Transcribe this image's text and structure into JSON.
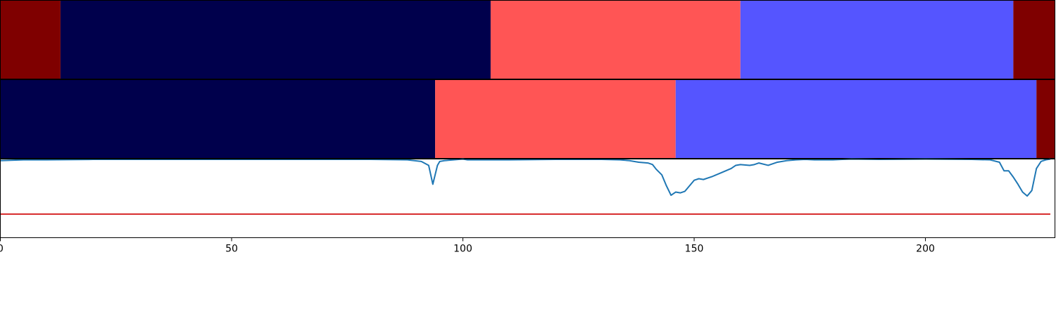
{
  "chart_data": {
    "type": "area",
    "xlim": [
      0,
      228
    ],
    "x_ticks": [
      0,
      50,
      100,
      150,
      200
    ],
    "segment_colors": {
      "A": "#7f0000",
      "B": "#00004c",
      "C": "#ff5555",
      "D": "#5555ff"
    },
    "tracks": [
      {
        "segments": [
          {
            "start": 0,
            "end": 13,
            "class": "A"
          },
          {
            "start": 13,
            "end": 106,
            "class": "B"
          },
          {
            "start": 106,
            "end": 160,
            "class": "C"
          },
          {
            "start": 160,
            "end": 219,
            "class": "D"
          },
          {
            "start": 219,
            "end": 228,
            "class": "A"
          }
        ]
      },
      {
        "segments": [
          {
            "start": 0,
            "end": 94,
            "class": "B"
          },
          {
            "start": 94,
            "end": 146,
            "class": "C"
          },
          {
            "start": 146,
            "end": 224,
            "class": "D"
          },
          {
            "start": 224,
            "end": 228,
            "class": "A"
          }
        ]
      }
    ],
    "line_panel": {
      "ylim": [
        0,
        1
      ],
      "threshold": 0.3,
      "threshold_color": "#d62728",
      "line_color": "#1f77b4",
      "series": {
        "x": [
          0,
          5,
          10,
          20,
          40,
          60,
          80,
          88,
          91,
          92.6,
          93.5,
          94.5,
          95,
          96,
          98,
          100,
          101,
          110,
          120,
          130,
          134,
          136,
          138,
          140,
          141,
          141.8,
          143,
          144,
          145,
          146,
          147,
          148,
          150,
          151,
          152,
          154,
          156,
          158,
          159,
          160,
          162,
          163,
          164,
          166,
          168,
          170,
          172,
          174,
          176,
          180,
          182,
          184,
          190,
          200,
          210,
          214,
          216,
          217,
          218,
          219,
          220,
          221,
          222,
          223,
          224,
          225,
          226,
          227
        ],
        "y": [
          0.98,
          0.99,
          0.99,
          0.995,
          0.995,
          0.995,
          0.995,
          0.99,
          0.97,
          0.92,
          0.68,
          0.92,
          0.97,
          0.98,
          0.99,
          1.0,
          0.99,
          0.99,
          0.995,
          0.995,
          0.99,
          0.98,
          0.96,
          0.95,
          0.93,
          0.87,
          0.8,
          0.66,
          0.54,
          0.58,
          0.57,
          0.59,
          0.73,
          0.75,
          0.74,
          0.78,
          0.83,
          0.88,
          0.92,
          0.93,
          0.92,
          0.93,
          0.95,
          0.92,
          0.96,
          0.98,
          0.99,
          0.995,
          0.99,
          0.99,
          0.995,
          1.0,
          0.995,
          1.0,
          0.995,
          0.99,
          0.96,
          0.85,
          0.85,
          0.77,
          0.68,
          0.58,
          0.53,
          0.6,
          0.88,
          0.97,
          0.99,
          1.0
        ]
      }
    }
  }
}
